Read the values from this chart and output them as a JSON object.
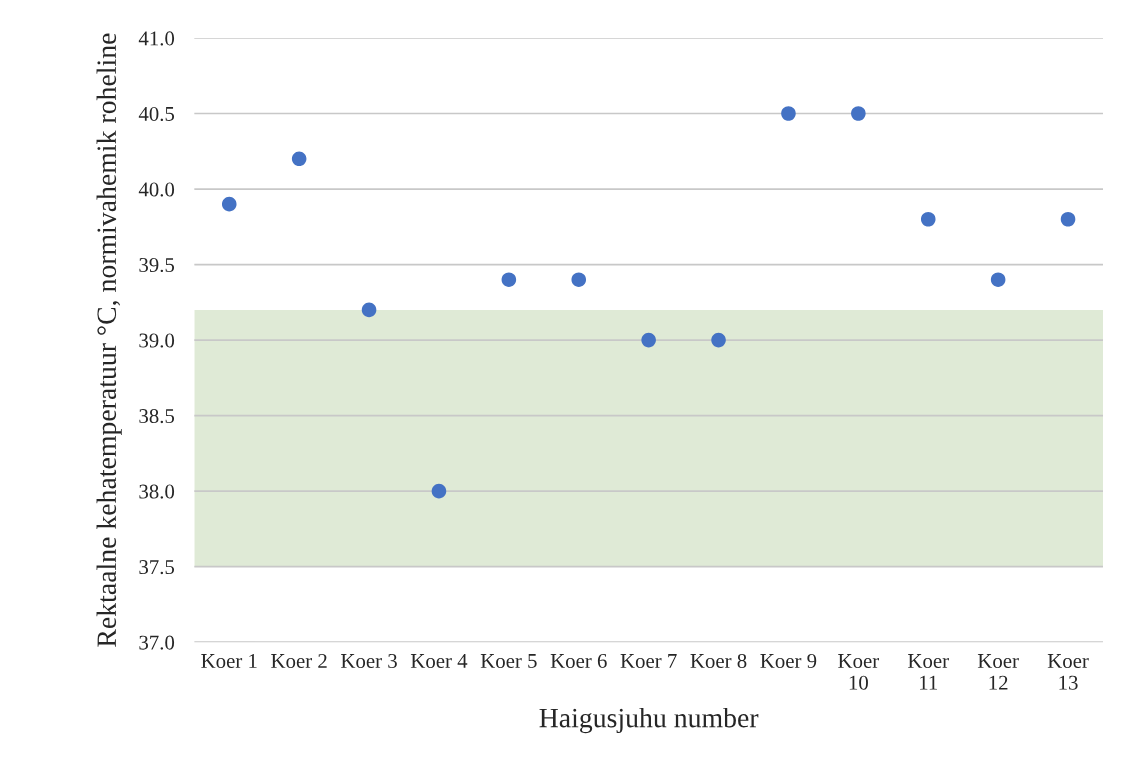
{
  "chart_data": {
    "type": "scatter",
    "xlabel": "Haigusjuhu number",
    "ylabel": "Rektaalne kehatemperatuur °C, normivahemik roheline",
    "categories": [
      "Koer 1",
      "Koer 2",
      "Koer 3",
      "Koer 4",
      "Koer 5",
      "Koer 6",
      "Koer 7",
      "Koer 8",
      "Koer 9",
      "Koer 10",
      "Koer 11",
      "Koer 12",
      "Koer 13"
    ],
    "series": [
      {
        "color": "#4472c4",
        "values": [
          39.9,
          40.2,
          39.2,
          38.0,
          39.4,
          39.4,
          39.0,
          39.0,
          40.5,
          40.5,
          39.8,
          39.4,
          39.8
        ]
      }
    ],
    "ylim": [
      37.0,
      41.0
    ],
    "yticks": [
      {
        "value": 37.0,
        "label": "37.0"
      },
      {
        "value": 37.5,
        "label": "37.5"
      },
      {
        "value": 38.0,
        "label": "38.0"
      },
      {
        "value": 38.5,
        "label": "38.5"
      },
      {
        "value": 39.0,
        "label": "39.0"
      },
      {
        "value": 39.5,
        "label": "39.5"
      },
      {
        "value": 40.0,
        "label": "40.0"
      },
      {
        "value": 40.5,
        "label": "40.5"
      },
      {
        "value": 41.0,
        "label": "41.0"
      }
    ],
    "bands": [
      {
        "axis": "y",
        "from": 37.5,
        "to": 39.2,
        "color": "#dfead6"
      }
    ],
    "grid": "y",
    "marker": "circle"
  }
}
